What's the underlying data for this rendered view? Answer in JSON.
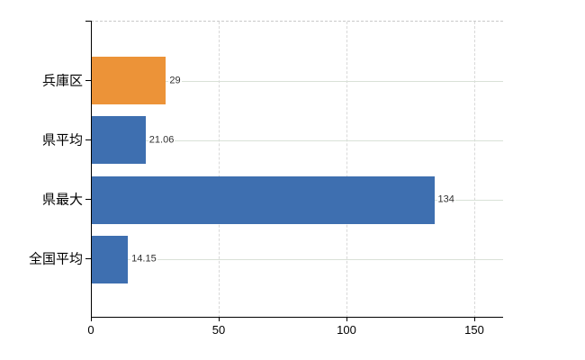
{
  "chart_data": {
    "type": "bar",
    "orientation": "horizontal",
    "title": "",
    "xlabel": "",
    "ylabel": "",
    "categories": [
      "兵庫区",
      "県平均",
      "県最大",
      "全国平均"
    ],
    "values": [
      29,
      21.06,
      134,
      14.15
    ],
    "value_labels": [
      "29",
      "21.06",
      "134",
      "14.15"
    ],
    "bar_colors": [
      "#EC9338",
      "#3E6FB0",
      "#3E6FB0",
      "#3E6FB0"
    ],
    "x_ticks": [
      0,
      50,
      100,
      150
    ],
    "x_tick_labels": [
      "0",
      "50",
      "100",
      "150"
    ],
    "xlim": [
      0,
      161
    ],
    "grid": true,
    "legend": "none",
    "colors": {
      "highlight_bar": "#EC9338",
      "default_bar": "#3E6FB0",
      "h_gridline": "#d9e1d7",
      "v_gridline": "#d8d8d8",
      "top_border": "#c9c9c9",
      "axis": "#000000",
      "value_label_text": "#303030",
      "background": "#ffffff"
    }
  }
}
